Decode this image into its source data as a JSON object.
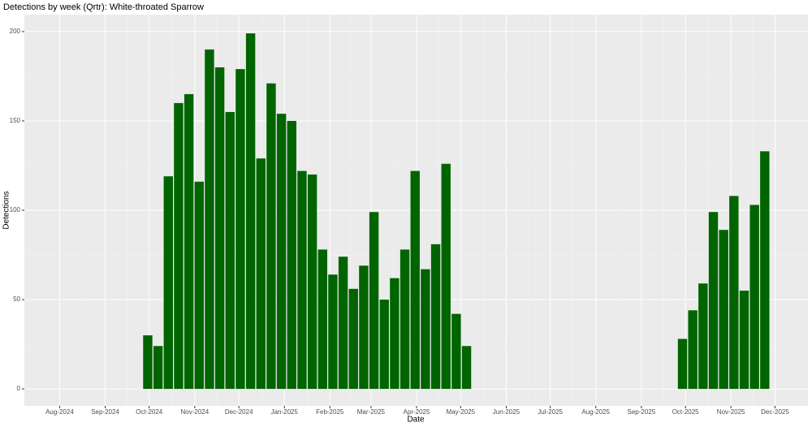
{
  "chart_data": {
    "type": "bar",
    "title": "Detections by week (Qrtr): White-throated Sparrow",
    "x_label": "Date",
    "y_label": "Detections",
    "color": "#006400",
    "grid": true,
    "x": [
      0,
      1,
      2,
      3,
      4,
      5,
      6,
      7,
      8,
      9,
      10,
      11,
      12,
      13,
      14,
      15,
      16,
      17,
      18,
      19,
      20,
      21,
      22,
      23,
      24,
      25,
      26,
      27,
      28,
      29,
      30,
      31,
      52,
      53,
      54,
      55,
      56,
      57,
      58,
      59,
      60
    ],
    "values": [
      30,
      24,
      119,
      160,
      165,
      116,
      190,
      180,
      155,
      179,
      199,
      129,
      171,
      154,
      150,
      122,
      120,
      78,
      64,
      74,
      56,
      69,
      99,
      50,
      62,
      78,
      122,
      67,
      81,
      126,
      42,
      24,
      28,
      44,
      59,
      99,
      89,
      108,
      55,
      103,
      133
    ],
    "xlim": [
      -12,
      64.2
    ],
    "xticks": [
      {
        "value": -8.57,
        "label": "Aug-2024"
      },
      {
        "value": -4.14,
        "label": "Sep-2024"
      },
      {
        "value": 0.14,
        "label": "Oct-2024"
      },
      {
        "value": 4.57,
        "label": "Nov-2024"
      },
      {
        "value": 8.86,
        "label": "Dec-2024"
      },
      {
        "value": 13.29,
        "label": "Jan-2025"
      },
      {
        "value": 17.71,
        "label": "Feb-2025"
      },
      {
        "value": 21.71,
        "label": "Mar-2025"
      },
      {
        "value": 26.14,
        "label": "Apr-2025"
      },
      {
        "value": 30.43,
        "label": "May-2025"
      },
      {
        "value": 34.86,
        "label": "Jun-2025"
      },
      {
        "value": 39.14,
        "label": "Jul-2025"
      },
      {
        "value": 43.57,
        "label": "Aug-2025"
      },
      {
        "value": 48,
        "label": "Sep-2025"
      },
      {
        "value": 52.29,
        "label": "Oct-2025"
      },
      {
        "value": 56.71,
        "label": "Nov-2025"
      },
      {
        "value": 61,
        "label": "Dec-2025"
      }
    ],
    "ylim": [
      -9.5,
      209.5
    ],
    "yticks": [
      0,
      50,
      100,
      150,
      200
    ]
  }
}
